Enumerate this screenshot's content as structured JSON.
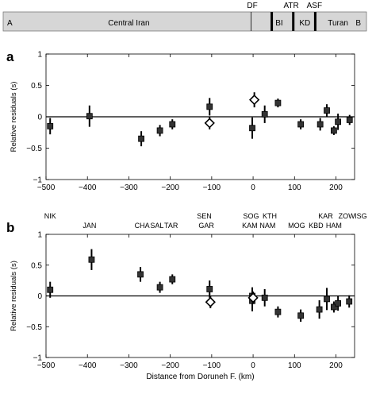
{
  "terrane_bar": {
    "left_label": "A",
    "right_label": "B",
    "regions": [
      {
        "label": "Central Iran",
        "x": -300,
        "row": "lower"
      },
      {
        "label": "DF",
        "x": -2,
        "row": "upper"
      },
      {
        "label": "ATR",
        "x": 92,
        "row": "upper"
      },
      {
        "label": "ASF",
        "x": 148,
        "row": "upper"
      },
      {
        "label": "BI",
        "x": 63,
        "row": "lower"
      },
      {
        "label": "KD",
        "x": 125,
        "row": "lower"
      },
      {
        "label": "Turan",
        "x": 205,
        "row": "lower"
      }
    ],
    "boundaries": [
      {
        "x": -5,
        "style": "thin"
      },
      {
        "x": 45,
        "style": "thick"
      },
      {
        "x": 97,
        "style": "thick"
      },
      {
        "x": 150,
        "style": "thick"
      }
    ]
  },
  "chart_data": [
    {
      "type": "scatter",
      "panel_label": "a",
      "title": "",
      "xlabel": "",
      "ylabel": "Relative residuals (s)",
      "xlim": [
        -500,
        245
      ],
      "ylim": [
        -1,
        1
      ],
      "xticks": [
        -500,
        -400,
        -300,
        -200,
        -100,
        0,
        100,
        200
      ],
      "yticks": [
        -1,
        -0.5,
        0,
        0.5,
        1
      ],
      "xtick_labels": [
        "−500",
        "−400",
        "−300",
        "−200",
        "−100",
        "0",
        "100",
        "200"
      ],
      "ytick_labels": [
        "−1",
        "−0.5",
        "0",
        "0.5",
        "1"
      ],
      "zero_line": true,
      "series": [
        {
          "marker": "square",
          "points": [
            {
              "x": -490,
              "y": -0.15,
              "err": 0.13
            },
            {
              "x": -395,
              "y": 0.01,
              "err": 0.17
            },
            {
              "x": -270,
              "y": -0.35,
              "err": 0.12
            },
            {
              "x": -225,
              "y": -0.22,
              "err": 0.09
            },
            {
              "x": -195,
              "y": -0.12,
              "err": 0.08
            },
            {
              "x": -105,
              "y": 0.16,
              "err": 0.14
            },
            {
              "x": -2,
              "y": -0.18,
              "err": 0.17
            },
            {
              "x": 28,
              "y": 0.04,
              "err": 0.14
            },
            {
              "x": 60,
              "y": 0.22,
              "err": 0.07
            },
            {
              "x": 115,
              "y": -0.12,
              "err": 0.08
            },
            {
              "x": 162,
              "y": -0.12,
              "err": 0.1
            },
            {
              "x": 178,
              "y": 0.1,
              "err": 0.1
            },
            {
              "x": 195,
              "y": -0.22,
              "err": 0.07
            },
            {
              "x": 205,
              "y": -0.08,
              "err": 0.13
            },
            {
              "x": 233,
              "y": -0.05,
              "err": 0.08
            }
          ]
        },
        {
          "marker": "diamond",
          "points": [
            {
              "x": -105,
              "y": -0.1,
              "err": 0.1
            },
            {
              "x": 3,
              "y": 0.27,
              "err": 0.12
            }
          ]
        }
      ]
    },
    {
      "type": "scatter",
      "panel_label": "b",
      "title": "",
      "xlabel": "Distance from Doruneh F. (km)",
      "ylabel": "Relative residuals (s)",
      "xlim": [
        -500,
        245
      ],
      "ylim": [
        -1,
        1
      ],
      "xticks": [
        -500,
        -400,
        -300,
        -200,
        -100,
        0,
        100,
        200
      ],
      "yticks": [
        -1,
        -0.5,
        0,
        0.5,
        1
      ],
      "xtick_labels": [
        "−500",
        "−400",
        "−300",
        "−200",
        "−100",
        "0",
        "100",
        "200"
      ],
      "ytick_labels": [
        "−1",
        "−0.5",
        "0",
        "0.5",
        "1"
      ],
      "zero_line": true,
      "station_labels": [
        {
          "label": "NIK",
          "x": -490,
          "row": 0
        },
        {
          "label": "JAN",
          "x": -395,
          "row": 1
        },
        {
          "label": "CHA",
          "x": -268,
          "row": 1
        },
        {
          "label": "SAL",
          "x": -232,
          "row": 1
        },
        {
          "label": "TAR",
          "x": -198,
          "row": 1
        },
        {
          "label": "SEN",
          "x": -118,
          "row": 0
        },
        {
          "label": "GAR",
          "x": -113,
          "row": 1
        },
        {
          "label": "SOG",
          "x": -5,
          "row": 0
        },
        {
          "label": "KAM",
          "x": -8,
          "row": 1
        },
        {
          "label": "KTH",
          "x": 40,
          "row": 0
        },
        {
          "label": "NAM",
          "x": 35,
          "row": 1
        },
        {
          "label": "MOG",
          "x": 105,
          "row": 1
        },
        {
          "label": "KAR",
          "x": 175,
          "row": 0
        },
        {
          "label": "KBD",
          "x": 152,
          "row": 1
        },
        {
          "label": "HAM",
          "x": 195,
          "row": 1
        },
        {
          "label": "ZOW",
          "x": 226,
          "row": 0
        },
        {
          "label": "ISG",
          "x": 260,
          "row": 0
        }
      ],
      "series": [
        {
          "marker": "square",
          "points": [
            {
              "x": -490,
              "y": 0.1,
              "err": 0.13
            },
            {
              "x": -390,
              "y": 0.59,
              "err": 0.17
            },
            {
              "x": -272,
              "y": 0.35,
              "err": 0.12
            },
            {
              "x": -225,
              "y": 0.14,
              "err": 0.09
            },
            {
              "x": -195,
              "y": 0.27,
              "err": 0.08
            },
            {
              "x": -105,
              "y": 0.11,
              "err": 0.14
            },
            {
              "x": -2,
              "y": 0.0,
              "err": 0.14
            },
            {
              "x": -2,
              "y": -0.08,
              "err": 0.17
            },
            {
              "x": 28,
              "y": -0.03,
              "err": 0.14
            },
            {
              "x": 60,
              "y": -0.26,
              "err": 0.09
            },
            {
              "x": 115,
              "y": -0.32,
              "err": 0.1
            },
            {
              "x": 160,
              "y": -0.22,
              "err": 0.15
            },
            {
              "x": 178,
              "y": -0.05,
              "err": 0.18
            },
            {
              "x": 195,
              "y": -0.18,
              "err": 0.09
            },
            {
              "x": 205,
              "y": -0.12,
              "err": 0.12
            },
            {
              "x": 232,
              "y": -0.09,
              "err": 0.1
            }
          ]
        },
        {
          "marker": "diamond",
          "points": [
            {
              "x": -103,
              "y": -0.1,
              "err": 0.1
            },
            {
              "x": 0,
              "y": -0.03,
              "err": 0.1
            }
          ]
        }
      ]
    }
  ]
}
